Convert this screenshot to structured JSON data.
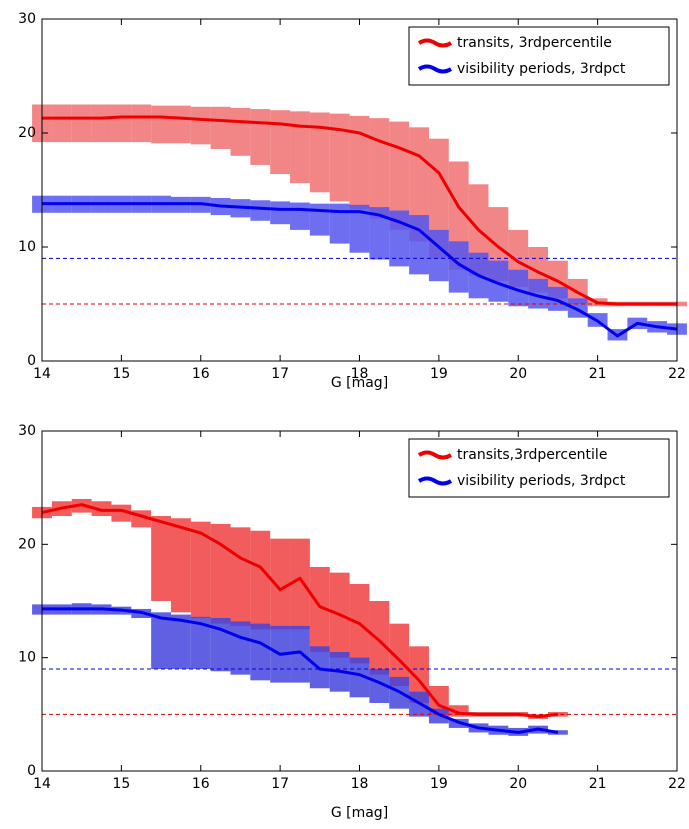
{
  "chart_data": [
    {
      "type": "line",
      "xlabel": "G [mag]",
      "xlim": [
        14,
        22
      ],
      "xticks": [
        14,
        15,
        16,
        17,
        18,
        19,
        20,
        21,
        22
      ],
      "ylim": [
        0,
        30
      ],
      "yticks": [
        0,
        10,
        20,
        30
      ],
      "legend": "upper right",
      "x": [
        14,
        14.25,
        14.5,
        14.75,
        15,
        15.25,
        15.5,
        15.75,
        16,
        16.25,
        16.5,
        16.75,
        17,
        17.25,
        17.5,
        17.75,
        18,
        18.25,
        18.5,
        18.75,
        19,
        19.25,
        19.5,
        19.75,
        20,
        20.25,
        20.5,
        20.75,
        21,
        21.25,
        21.5,
        21.75,
        22
      ],
      "hlines": [
        {
          "value": 9,
          "color": "#0000dd"
        },
        {
          "value": 5,
          "color": "#dd0000"
        }
      ],
      "series": [
        {
          "name": "transits, 3rdpercentile",
          "color": "#ee0000",
          "band_color": "#f07070",
          "values": [
            21.3,
            21.3,
            21.3,
            21.3,
            21.4,
            21.4,
            21.4,
            21.3,
            21.2,
            21.1,
            21.0,
            20.9,
            20.8,
            20.6,
            20.5,
            20.3,
            20.0,
            19.3,
            18.7,
            18.0,
            16.5,
            13.5,
            11.5,
            10.0,
            8.7,
            7.8,
            7.0,
            6.0,
            5.1,
            5.0,
            5.0,
            5.0,
            5.0
          ],
          "lower": [
            19.2,
            19.2,
            19.2,
            19.2,
            19.2,
            19.2,
            19.1,
            19.1,
            19.0,
            18.6,
            18.0,
            17.2,
            16.4,
            15.6,
            14.8,
            14.0,
            13.3,
            12.5,
            11.5,
            10.5,
            9.0,
            8.0,
            7.5,
            7.0,
            6.5,
            6.0,
            5.5,
            5.0,
            4.8,
            4.8,
            4.8,
            4.8,
            4.8
          ],
          "upper": [
            22.5,
            22.5,
            22.5,
            22.5,
            22.5,
            22.5,
            22.4,
            22.4,
            22.3,
            22.3,
            22.2,
            22.1,
            22.0,
            21.9,
            21.8,
            21.7,
            21.5,
            21.3,
            21.0,
            20.5,
            19.5,
            17.5,
            15.5,
            13.5,
            11.5,
            10.0,
            8.8,
            7.2,
            5.5,
            5.2,
            5.2,
            5.2,
            5.2
          ]
        },
        {
          "name": "visibility periods, 3rdpct",
          "color": "#0000ee",
          "band_color": "#5555ee",
          "values": [
            13.8,
            13.8,
            13.8,
            13.8,
            13.8,
            13.8,
            13.8,
            13.8,
            13.8,
            13.6,
            13.5,
            13.4,
            13.3,
            13.3,
            13.2,
            13.1,
            13.1,
            12.8,
            12.2,
            11.5,
            10.0,
            8.5,
            7.5,
            6.8,
            6.2,
            5.7,
            5.3,
            4.5,
            3.5,
            2.2,
            3.3,
            3.0,
            2.8
          ],
          "lower": [
            13.0,
            13.0,
            13.0,
            13.0,
            13.0,
            13.0,
            13.0,
            13.0,
            13.0,
            12.8,
            12.6,
            12.3,
            12.0,
            11.5,
            11.0,
            10.3,
            9.5,
            8.9,
            8.3,
            7.6,
            7.0,
            6.0,
            5.5,
            5.2,
            4.8,
            4.6,
            4.4,
            3.8,
            3.0,
            1.8,
            2.8,
            2.5,
            2.3
          ],
          "upper": [
            14.5,
            14.5,
            14.5,
            14.5,
            14.5,
            14.5,
            14.5,
            14.4,
            14.4,
            14.3,
            14.2,
            14.1,
            14.0,
            13.9,
            13.8,
            13.8,
            13.7,
            13.5,
            13.2,
            12.8,
            11.5,
            10.5,
            9.5,
            8.8,
            8.0,
            7.2,
            6.5,
            5.5,
            4.2,
            2.8,
            3.8,
            3.5,
            3.3
          ]
        }
      ]
    },
    {
      "type": "line",
      "xlabel": "G [mag]",
      "xlim": [
        14,
        22
      ],
      "xticks": [
        14,
        15,
        16,
        17,
        18,
        19,
        20,
        21,
        22
      ],
      "ylim": [
        0,
        30
      ],
      "yticks": [
        0,
        10,
        20,
        30
      ],
      "legend": "upper right",
      "x": [
        14,
        14.25,
        14.5,
        14.75,
        15,
        15.25,
        15.5,
        15.75,
        16,
        16.25,
        16.5,
        16.75,
        17,
        17.25,
        17.5,
        17.75,
        18,
        18.25,
        18.5,
        18.75,
        19,
        19.25,
        19.5,
        19.75,
        20,
        20.25,
        20.5
      ],
      "hlines": [
        {
          "value": 9,
          "color": "#0000dd"
        },
        {
          "value": 5,
          "color": "#dd0000"
        }
      ],
      "series": [
        {
          "name": "transits,3rdpercentile",
          "color": "#ee0000",
          "band_color": "#f04040",
          "values": [
            22.8,
            23.2,
            23.5,
            23.0,
            23.0,
            22.5,
            22.0,
            21.5,
            21.0,
            20.0,
            18.8,
            18.0,
            16.0,
            17.0,
            14.5,
            13.8,
            13.0,
            11.5,
            9.8,
            8.0,
            5.8,
            5.1,
            5.0,
            5.0,
            5.0,
            4.8,
            5.0
          ],
          "lower": [
            22.3,
            22.5,
            22.8,
            22.5,
            22.0,
            21.5,
            15.0,
            14.0,
            13.5,
            13.0,
            12.8,
            12.5,
            12.5,
            12.5,
            10.5,
            10.0,
            9.5,
            8.5,
            7.5,
            6.0,
            5.0,
            4.8,
            4.8,
            4.8,
            4.8,
            4.6,
            4.8
          ],
          "upper": [
            23.3,
            23.8,
            24.0,
            23.8,
            23.5,
            23.0,
            22.5,
            22.3,
            22.0,
            21.8,
            21.5,
            21.2,
            20.5,
            20.5,
            18.0,
            17.5,
            16.5,
            15.0,
            13.0,
            11.0,
            7.5,
            5.8,
            5.2,
            5.2,
            5.2,
            5.0,
            5.2
          ]
        },
        {
          "name": "visibility periods, 3rdpct",
          "color": "#0000ee",
          "band_color": "#4444dd",
          "values": [
            14.3,
            14.3,
            14.3,
            14.3,
            14.2,
            14.0,
            13.5,
            13.3,
            13.0,
            12.5,
            11.8,
            11.3,
            10.3,
            10.5,
            9.0,
            8.8,
            8.5,
            7.8,
            7.0,
            6.0,
            5.0,
            4.3,
            3.8,
            3.6,
            3.4,
            3.7,
            3.4
          ],
          "lower": [
            13.8,
            13.8,
            13.8,
            13.8,
            13.8,
            13.5,
            9.0,
            9.0,
            9.0,
            8.8,
            8.5,
            8.0,
            7.8,
            7.8,
            7.3,
            7.0,
            6.5,
            6.0,
            5.5,
            4.8,
            4.2,
            3.8,
            3.4,
            3.2,
            3.1,
            3.3,
            3.2
          ],
          "upper": [
            14.7,
            14.7,
            14.8,
            14.7,
            14.5,
            14.3,
            14.0,
            13.8,
            13.6,
            13.5,
            13.2,
            13.0,
            12.8,
            12.8,
            11.0,
            10.5,
            10.0,
            9.0,
            8.3,
            7.0,
            5.5,
            4.6,
            4.2,
            4.0,
            3.8,
            4.0,
            3.6
          ]
        }
      ]
    }
  ]
}
